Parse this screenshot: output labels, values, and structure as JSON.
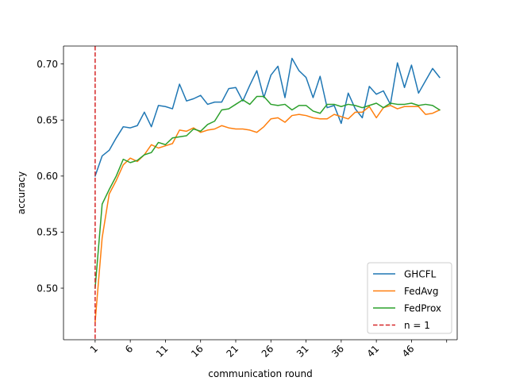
{
  "chart_data": {
    "type": "line",
    "xlabel": "communication round",
    "ylabel": "accuracy",
    "xlim": [
      -3.5,
      52.5
    ],
    "ylim": [
      0.454,
      0.716
    ],
    "xticks": [
      1,
      6,
      11,
      16,
      21,
      26,
      31,
      36,
      41,
      46,
      51
    ],
    "xtick_labels": [
      "1",
      "6",
      "11",
      "16",
      "21",
      "26",
      "31",
      "36",
      "41",
      "46",
      ""
    ],
    "yticks": [
      0.5,
      0.55,
      0.6,
      0.65,
      0.7
    ],
    "ytick_labels": [
      "0.50",
      "0.55",
      "0.60",
      "0.65",
      "0.70"
    ],
    "grid": false,
    "legend_position": "lower-right",
    "series": [
      {
        "name": "GHCFL",
        "color": "#1f77b4",
        "x": [
          1,
          2,
          3,
          4,
          5,
          6,
          7,
          8,
          9,
          10,
          11,
          12,
          13,
          14,
          15,
          16,
          17,
          18,
          19,
          20,
          21,
          22,
          23,
          24,
          25,
          26,
          27,
          28,
          29,
          30,
          31,
          32,
          33,
          34,
          35,
          36,
          37,
          38,
          39,
          40,
          41,
          42,
          43,
          44,
          45,
          46,
          47,
          48,
          49,
          50
        ],
        "values": [
          0.6,
          0.618,
          0.623,
          0.634,
          0.644,
          0.643,
          0.645,
          0.657,
          0.644,
          0.663,
          0.662,
          0.66,
          0.682,
          0.667,
          0.669,
          0.672,
          0.664,
          0.666,
          0.666,
          0.678,
          0.679,
          0.667,
          0.681,
          0.694,
          0.67,
          0.69,
          0.698,
          0.67,
          0.705,
          0.694,
          0.688,
          0.67,
          0.689,
          0.661,
          0.663,
          0.647,
          0.674,
          0.66,
          0.652,
          0.68,
          0.673,
          0.676,
          0.664,
          0.701,
          0.679,
          0.699,
          0.674,
          0.685,
          0.696,
          0.688
        ]
      },
      {
        "name": "FedAvg",
        "color": "#ff7f0e",
        "x": [
          1,
          2,
          3,
          4,
          5,
          6,
          7,
          8,
          9,
          10,
          11,
          12,
          13,
          14,
          15,
          16,
          17,
          18,
          19,
          20,
          21,
          22,
          23,
          24,
          25,
          26,
          27,
          28,
          29,
          30,
          31,
          32,
          33,
          34,
          35,
          36,
          37,
          38,
          39,
          40,
          41,
          42,
          43,
          44,
          45,
          46,
          47,
          48,
          49,
          50
        ],
        "values": [
          0.47,
          0.545,
          0.584,
          0.596,
          0.61,
          0.616,
          0.613,
          0.619,
          0.628,
          0.625,
          0.627,
          0.629,
          0.641,
          0.64,
          0.643,
          0.639,
          0.641,
          0.642,
          0.645,
          0.643,
          0.642,
          0.642,
          0.641,
          0.639,
          0.644,
          0.651,
          0.652,
          0.648,
          0.654,
          0.655,
          0.654,
          0.652,
          0.651,
          0.651,
          0.655,
          0.653,
          0.651,
          0.657,
          0.657,
          0.662,
          0.652,
          0.661,
          0.663,
          0.66,
          0.662,
          0.662,
          0.662,
          0.655,
          0.656,
          0.659
        ]
      },
      {
        "name": "FedProx",
        "color": "#2ca02c",
        "x": [
          1,
          2,
          3,
          4,
          5,
          6,
          7,
          8,
          9,
          10,
          11,
          12,
          13,
          14,
          15,
          16,
          17,
          18,
          19,
          20,
          21,
          22,
          23,
          24,
          25,
          26,
          27,
          28,
          29,
          30,
          31,
          32,
          33,
          34,
          35,
          36,
          37,
          38,
          39,
          40,
          41,
          42,
          43,
          44,
          45,
          46,
          47,
          48,
          49,
          50
        ],
        "values": [
          0.5,
          0.575,
          0.588,
          0.6,
          0.615,
          0.612,
          0.614,
          0.619,
          0.621,
          0.63,
          0.628,
          0.634,
          0.635,
          0.636,
          0.642,
          0.64,
          0.646,
          0.649,
          0.659,
          0.66,
          0.664,
          0.668,
          0.664,
          0.671,
          0.671,
          0.664,
          0.663,
          0.664,
          0.659,
          0.663,
          0.663,
          0.658,
          0.656,
          0.664,
          0.664,
          0.662,
          0.664,
          0.663,
          0.661,
          0.663,
          0.665,
          0.661,
          0.665,
          0.664,
          0.664,
          0.665,
          0.663,
          0.664,
          0.663,
          0.659
        ]
      }
    ],
    "vline": {
      "name": "n = 1",
      "x": 1,
      "color": "#d62728",
      "style": "dashed"
    }
  }
}
